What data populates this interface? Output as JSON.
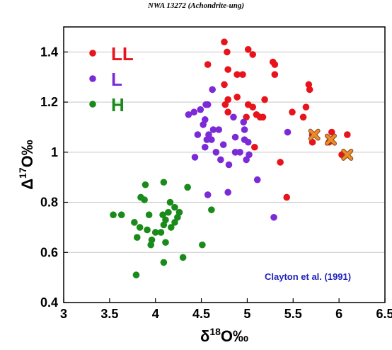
{
  "page_title": "NWA 13272 (Achondrite-ung)",
  "chart_data": {
    "type": "scatter",
    "xlabel_prefix": "δ",
    "xlabel_sup": "18",
    "xlabel_suffix": "O‰",
    "ylabel_prefix": "Δ",
    "ylabel_sup": "17",
    "ylabel_suffix": "O‰",
    "xlim": [
      3,
      6.5
    ],
    "ylim": [
      0.4,
      1.5
    ],
    "x_ticks": [
      3,
      3.5,
      4,
      4.5,
      5,
      5.5,
      6,
      6.5
    ],
    "x_tick_labels": [
      "3",
      "3.5",
      "4",
      "4.5",
      "5",
      "5.5",
      "6",
      "6.5"
    ],
    "y_ticks": [
      0.4,
      0.6,
      0.8,
      1.0,
      1.2,
      1.4
    ],
    "y_tick_labels": [
      "0.4",
      "0.6",
      "0.8",
      "1",
      "1.2",
      "1.4"
    ],
    "grid": "horizontal",
    "legend_position": "top-left",
    "annotation": "Clayton et al. (1991)",
    "annotation_color": "#2222bb",
    "series": [
      {
        "name": "LL",
        "color": "#e8141c",
        "marker": "circle",
        "points": [
          [
            4.75,
            1.44
          ],
          [
            4.78,
            1.4
          ],
          [
            5.01,
            1.41
          ],
          [
            5.06,
            1.39
          ],
          [
            4.57,
            1.35
          ],
          [
            4.79,
            1.33
          ],
          [
            4.89,
            1.31
          ],
          [
            5.28,
            1.36
          ],
          [
            5.3,
            1.35
          ],
          [
            5.3,
            1.31
          ],
          [
            4.95,
            1.31
          ],
          [
            4.75,
            1.27
          ],
          [
            5.67,
            1.27
          ],
          [
            5.68,
            1.25
          ],
          [
            4.89,
            1.22
          ],
          [
            4.79,
            1.21
          ],
          [
            5.01,
            1.19
          ],
          [
            5.19,
            1.21
          ],
          [
            4.76,
            1.19
          ],
          [
            4.79,
            1.16
          ],
          [
            5.06,
            1.18
          ],
          [
            5.1,
            1.15
          ],
          [
            5.14,
            1.14
          ],
          [
            5.17,
            1.14
          ],
          [
            4.99,
            1.14
          ],
          [
            5.64,
            1.18
          ],
          [
            5.49,
            1.16
          ],
          [
            5.61,
            1.14
          ],
          [
            5.71,
            1.07
          ],
          [
            5.92,
            1.08
          ],
          [
            5.71,
            1.04
          ],
          [
            5.89,
            1.04
          ],
          [
            6.09,
            1.07
          ],
          [
            6.03,
            0.99
          ],
          [
            6.07,
            0.99
          ],
          [
            5.08,
            1.02
          ],
          [
            5.36,
            0.96
          ],
          [
            5.43,
            0.82
          ]
        ]
      },
      {
        "name": "L",
        "color": "#7b2ad8",
        "marker": "circle",
        "points": [
          [
            4.62,
            1.25
          ],
          [
            4.49,
            1.17
          ],
          [
            4.55,
            1.19
          ],
          [
            4.57,
            1.19
          ],
          [
            4.42,
            1.16
          ],
          [
            4.36,
            1.15
          ],
          [
            4.54,
            1.13
          ],
          [
            4.52,
            1.11
          ],
          [
            4.58,
            1.07
          ],
          [
            4.46,
            1.07
          ],
          [
            4.63,
            1.09
          ],
          [
            4.69,
            1.09
          ],
          [
            4.85,
            1.14
          ],
          [
            4.96,
            1.12
          ],
          [
            4.97,
            1.09
          ],
          [
            5.44,
            1.08
          ],
          [
            4.56,
            1.05
          ],
          [
            4.61,
            1.05
          ],
          [
            4.54,
            1.02
          ],
          [
            4.66,
            1.0
          ],
          [
            4.74,
            1.03
          ],
          [
            4.87,
            1.06
          ],
          [
            4.97,
            1.05
          ],
          [
            5.01,
            1.04
          ],
          [
            4.87,
            1.0
          ],
          [
            4.92,
            1.0
          ],
          [
            5.02,
            0.99
          ],
          [
            4.99,
            0.97
          ],
          [
            4.43,
            0.98
          ],
          [
            4.71,
            0.97
          ],
          [
            4.8,
            0.95
          ],
          [
            5.11,
            0.89
          ],
          [
            4.57,
            0.83
          ],
          [
            4.79,
            0.84
          ],
          [
            5.29,
            0.74
          ]
        ]
      },
      {
        "name": "H",
        "color": "#1a8a1a",
        "marker": "circle",
        "points": [
          [
            3.89,
            0.87
          ],
          [
            4.09,
            0.88
          ],
          [
            4.35,
            0.86
          ],
          [
            3.84,
            0.82
          ],
          [
            3.88,
            0.81
          ],
          [
            4.16,
            0.8
          ],
          [
            4.21,
            0.78
          ],
          [
            4.26,
            0.76
          ],
          [
            4.14,
            0.76
          ],
          [
            4.08,
            0.75
          ],
          [
            4.61,
            0.77
          ],
          [
            3.54,
            0.75
          ],
          [
            3.63,
            0.75
          ],
          [
            3.93,
            0.75
          ],
          [
            4.11,
            0.73
          ],
          [
            4.09,
            0.71
          ],
          [
            4.21,
            0.72
          ],
          [
            4.17,
            0.7
          ],
          [
            4.24,
            0.74
          ],
          [
            3.77,
            0.72
          ],
          [
            3.83,
            0.7
          ],
          [
            3.91,
            0.69
          ],
          [
            4.0,
            0.68
          ],
          [
            4.06,
            0.68
          ],
          [
            3.8,
            0.66
          ],
          [
            3.96,
            0.65
          ],
          [
            3.95,
            0.63
          ],
          [
            4.11,
            0.64
          ],
          [
            4.51,
            0.63
          ],
          [
            4.3,
            0.58
          ],
          [
            4.09,
            0.56
          ],
          [
            3.79,
            0.51
          ]
        ]
      },
      {
        "name": "NWA 13272",
        "color": "#ef8a2a",
        "marker": "x",
        "in_legend": false,
        "points": [
          [
            5.73,
            1.07
          ],
          [
            5.91,
            1.05
          ],
          [
            6.09,
            0.99
          ]
        ]
      }
    ]
  }
}
